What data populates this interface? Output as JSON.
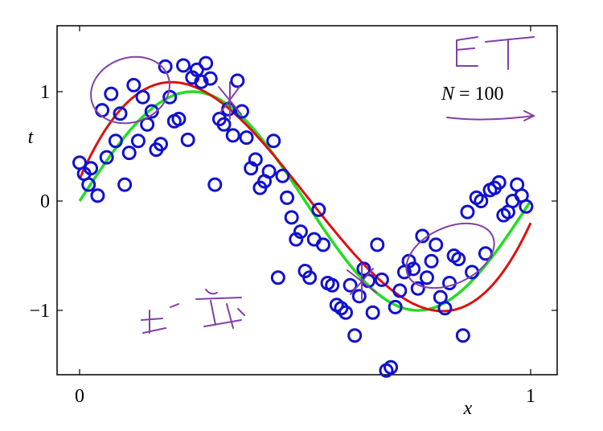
{
  "chart_data": {
    "type": "scatter",
    "xlabel": "x",
    "ylabel": "t",
    "xlim": [
      0,
      1
    ],
    "ylim": [
      -1.6,
      1.6
    ],
    "x_ticks": [
      {
        "value": 0,
        "label": "0"
      },
      {
        "value": 1,
        "label": "1"
      }
    ],
    "y_ticks": [
      {
        "value": 1,
        "label": "1"
      },
      {
        "value": 0,
        "label": "0"
      },
      {
        "value": -1,
        "label": "−1"
      }
    ],
    "grid": false,
    "annotation": {
      "text_italic": "N",
      "text_rest": " = 100"
    },
    "colors": {
      "points": "#1010d0",
      "true_curve": "#22dd22",
      "fit_curve": "#dd1111",
      "ink": "#8040a8"
    },
    "series": [
      {
        "kind": "points",
        "x": [
          0.0,
          0.01,
          0.02,
          0.025,
          0.04,
          0.05,
          0.06,
          0.07,
          0.08,
          0.09,
          0.1,
          0.11,
          0.12,
          0.13,
          0.14,
          0.15,
          0.16,
          0.17,
          0.18,
          0.19,
          0.2,
          0.21,
          0.22,
          0.23,
          0.24,
          0.25,
          0.26,
          0.27,
          0.28,
          0.29,
          0.3,
          0.31,
          0.32,
          0.33,
          0.34,
          0.35,
          0.36,
          0.37,
          0.38,
          0.39,
          0.4,
          0.41,
          0.42,
          0.43,
          0.44,
          0.45,
          0.46,
          0.47,
          0.48,
          0.49,
          0.5,
          0.51,
          0.52,
          0.53,
          0.54,
          0.55,
          0.56,
          0.57,
          0.58,
          0.59,
          0.6,
          0.61,
          0.62,
          0.63,
          0.64,
          0.65,
          0.66,
          0.67,
          0.68,
          0.69,
          0.7,
          0.71,
          0.72,
          0.73,
          0.74,
          0.75,
          0.76,
          0.77,
          0.78,
          0.79,
          0.8,
          0.81,
          0.82,
          0.83,
          0.84,
          0.85,
          0.86,
          0.87,
          0.88,
          0.89,
          0.9,
          0.91,
          0.92,
          0.93,
          0.94,
          0.95,
          0.96,
          0.97,
          0.98,
          0.99
        ],
        "y": [
          0.35,
          0.25,
          0.15,
          0.3,
          0.05,
          0.83,
          0.4,
          0.98,
          0.55,
          0.8,
          0.15,
          0.44,
          1.06,
          0.55,
          0.95,
          0.7,
          0.82,
          0.47,
          0.52,
          1.23,
          0.95,
          0.73,
          0.75,
          1.24,
          0.56,
          1.13,
          1.2,
          1.09,
          1.26,
          1.12,
          0.15,
          0.75,
          0.7,
          0.84,
          0.6,
          1.1,
          0.82,
          0.58,
          0.3,
          0.38,
          0.12,
          0.18,
          0.27,
          0.55,
          -0.7,
          0.23,
          0.03,
          -0.15,
          -0.35,
          -0.28,
          -0.64,
          -0.7,
          -0.35,
          -0.08,
          -0.4,
          -0.75,
          -0.77,
          -0.95,
          -0.98,
          -1.02,
          -0.77,
          -1.23,
          -0.87,
          -0.62,
          -0.73,
          -1.02,
          -0.4,
          -0.72,
          -1.55,
          -1.52,
          -0.97,
          -0.82,
          -0.65,
          -0.55,
          -0.62,
          -0.8,
          -0.32,
          -0.7,
          -0.55,
          -0.4,
          -0.88,
          -0.98,
          -0.75,
          -0.5,
          -0.53,
          -1.23,
          -0.1,
          -0.65,
          0.03,
          0.0,
          -0.48,
          0.1,
          0.12,
          0.17,
          -0.13,
          -0.1,
          0.0,
          0.15,
          0.05,
          -0.05
        ]
      },
      {
        "kind": "curve",
        "name": "",
        "function": "sin(2*pi*x)"
      },
      {
        "kind": "curve",
        "name": "",
        "function": "cubic fit",
        "coefficients": [
          0.2,
          9.5,
          -29.2,
          19.3
        ]
      }
    ]
  }
}
